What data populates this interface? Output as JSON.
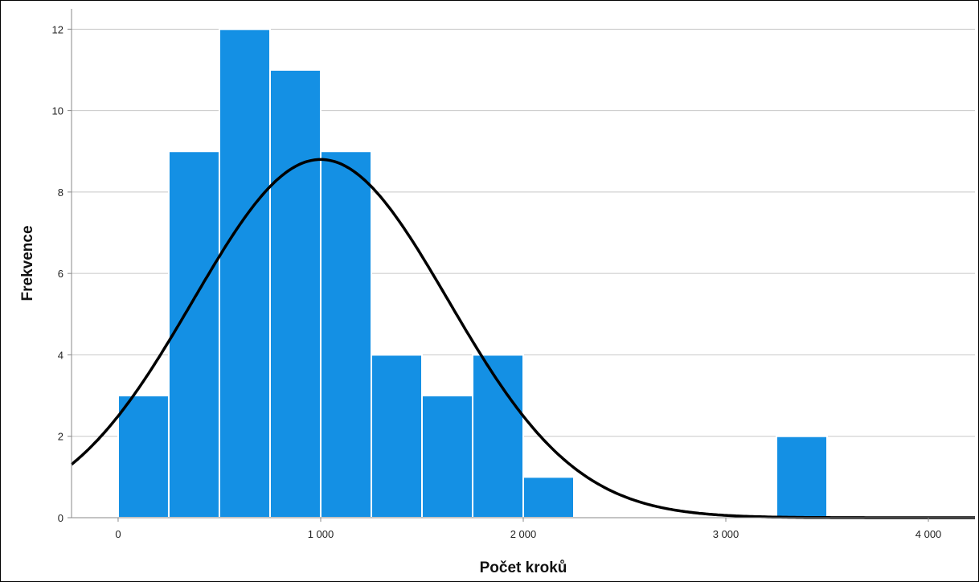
{
  "chart_data": {
    "type": "bar",
    "subtype": "histogram-with-normal-curve",
    "xlabel": "Počet kroků",
    "ylabel": "Frekvence",
    "bin_width": 250,
    "bins": [
      {
        "start": 0,
        "end": 250,
        "count": 3
      },
      {
        "start": 250,
        "end": 500,
        "count": 9
      },
      {
        "start": 500,
        "end": 750,
        "count": 12
      },
      {
        "start": 750,
        "end": 1000,
        "count": 11
      },
      {
        "start": 1000,
        "end": 1250,
        "count": 9
      },
      {
        "start": 1250,
        "end": 1500,
        "count": 4
      },
      {
        "start": 1500,
        "end": 1750,
        "count": 3
      },
      {
        "start": 1750,
        "end": 2000,
        "count": 4
      },
      {
        "start": 2000,
        "end": 2250,
        "count": 1
      },
      {
        "start": 3250,
        "end": 3500,
        "count": 2
      }
    ],
    "normal_curve": {
      "mean": 1000,
      "std_dev": 630,
      "peak_frequency": 8.8,
      "color": "#000000"
    },
    "xlim": [
      -230,
      4230
    ],
    "ylim": [
      0,
      12.5
    ],
    "x_ticks": [
      {
        "value": 0,
        "label": "0"
      },
      {
        "value": 1000,
        "label": "1 000"
      },
      {
        "value": 2000,
        "label": "2 000"
      },
      {
        "value": 3000,
        "label": "3 000"
      },
      {
        "value": 4000,
        "label": "4 000"
      }
    ],
    "y_ticks": [
      {
        "value": 0,
        "label": "0"
      },
      {
        "value": 2,
        "label": "2"
      },
      {
        "value": 4,
        "label": "4"
      },
      {
        "value": 6,
        "label": "6"
      },
      {
        "value": 8,
        "label": "8"
      },
      {
        "value": 10,
        "label": "10"
      },
      {
        "value": 12,
        "label": "12"
      }
    ],
    "grid": {
      "horizontal": true,
      "vertical": false
    },
    "bar_color": "#1490E4",
    "bar_edge_color": "#ffffff"
  }
}
